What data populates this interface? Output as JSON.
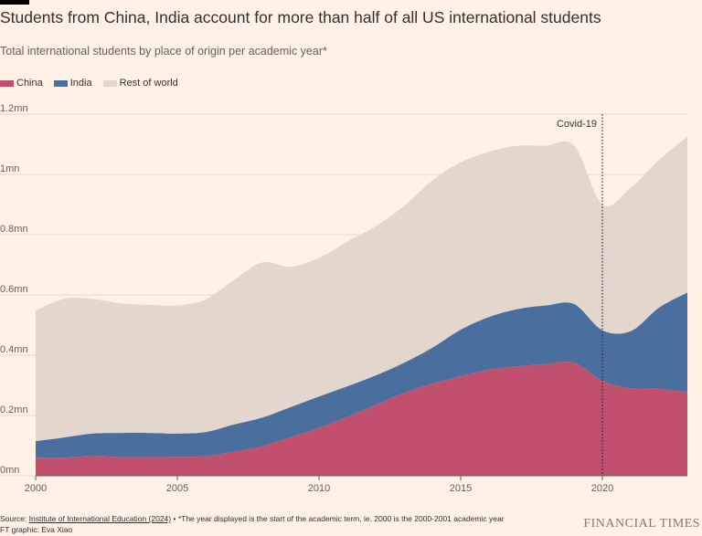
{
  "chart_data": {
    "type": "area",
    "stacked": true,
    "title": "Students from China, India account for more than half of all US international students",
    "subtitle": "Total international students by place of origin per academic year*",
    "x": [
      2000,
      2001,
      2002,
      2003,
      2004,
      2005,
      2006,
      2007,
      2008,
      2009,
      2010,
      2011,
      2012,
      2013,
      2014,
      2015,
      2016,
      2017,
      2018,
      2019,
      2020,
      2021,
      2022,
      2023
    ],
    "series": [
      {
        "name": "China",
        "color": "#c0506e",
        "values": [
          0.06,
          0.06,
          0.065,
          0.062,
          0.062,
          0.063,
          0.065,
          0.08,
          0.098,
          0.128,
          0.158,
          0.195,
          0.235,
          0.275,
          0.305,
          0.33,
          0.352,
          0.363,
          0.37,
          0.375,
          0.315,
          0.29,
          0.288,
          0.278
        ]
      },
      {
        "name": "India",
        "color": "#4a6f9f",
        "values": [
          0.055,
          0.067,
          0.075,
          0.08,
          0.08,
          0.077,
          0.08,
          0.09,
          0.095,
          0.1,
          0.105,
          0.102,
          0.098,
          0.1,
          0.12,
          0.155,
          0.175,
          0.19,
          0.195,
          0.195,
          0.168,
          0.19,
          0.27,
          0.33
        ]
      },
      {
        "name": "Rest of world",
        "color": "#e2d6cd",
        "values": [
          0.433,
          0.46,
          0.447,
          0.43,
          0.425,
          0.425,
          0.44,
          0.48,
          0.515,
          0.465,
          0.46,
          0.48,
          0.495,
          0.52,
          0.555,
          0.555,
          0.548,
          0.542,
          0.53,
          0.526,
          0.417,
          0.475,
          0.49,
          0.517
        ]
      }
    ],
    "legend": [
      "China",
      "India",
      "Rest of world"
    ],
    "legend_position": "top-left",
    "xticks": [
      "2000",
      "2005",
      "2010",
      "2015",
      "2020"
    ],
    "yticks": [
      "0mn",
      "0.2mn",
      "0.4mn",
      "0.6mn",
      "0.8mn",
      "1mn",
      "1.2mn"
    ],
    "ylim": [
      0,
      1.2
    ],
    "xlim": [
      2000,
      2023
    ],
    "grid": true,
    "annotation": {
      "label": "Covid-19",
      "x": 2020
    }
  },
  "footer": {
    "source_prefix": "Source: ",
    "source_link": "Institute of International Education (2024)",
    "source_note": " • *The year displayed is the start of the academic term, ie. 2000 is the 2000-2001 academic year",
    "credit": "FT graphic: Eva Xiao",
    "brand": "FINANCIAL TIMES"
  }
}
